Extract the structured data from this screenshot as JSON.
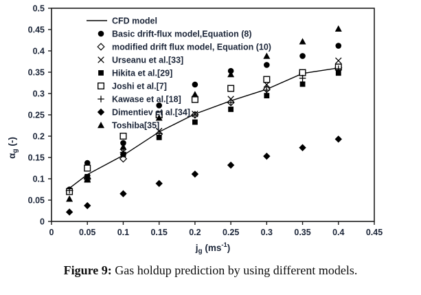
{
  "figure": {
    "caption_label": "Figure 9:",
    "caption_text": " Gas holdup prediction by using different models."
  },
  "chart_data": {
    "type": "line+scatter",
    "title": "",
    "xlabel": {
      "base": "j",
      "sub": "g",
      "mid": " (ms",
      "sup": "-1",
      "end": ")"
    },
    "ylabel": {
      "base": "α",
      "sub": "g",
      "end": " (-)"
    },
    "xlim": [
      0,
      0.45
    ],
    "ylim": [
      0,
      0.5
    ],
    "grid": false,
    "legend_position": "top-left-inside",
    "xticks": {
      "values": [
        0,
        0.05,
        0.1,
        0.15,
        0.2,
        0.25,
        0.3,
        0.35,
        0.4,
        0.45
      ],
      "labels": [
        "0",
        "0.05",
        "0.1",
        "0.15",
        "0.2",
        "0.25",
        "0.3",
        "0.35",
        "0.4",
        "0.45"
      ]
    },
    "yticks": {
      "values": [
        0,
        0.05,
        0.1,
        0.15,
        0.2,
        0.25,
        0.3,
        0.35,
        0.4,
        0.45,
        0.5
      ],
      "labels": [
        "0",
        "0.05",
        "0.1",
        "0.15",
        "0.2",
        "0.25",
        "0.3",
        "0.35",
        "0.4",
        "0.45",
        "0.5"
      ]
    },
    "x": [
      0.025,
      0.05,
      0.1,
      0.15,
      0.2,
      0.25,
      0.3,
      0.35,
      0.4
    ],
    "series": [
      {
        "name": "CFD model",
        "marker": "line",
        "values": [
          0.078,
          0.11,
          0.155,
          0.21,
          0.252,
          0.283,
          0.31,
          0.347,
          0.36
        ]
      },
      {
        "name": "Basic drift-flux model,Equation (8)",
        "marker": "circle-filled",
        "values": [
          0.075,
          0.137,
          0.184,
          0.272,
          0.321,
          0.353,
          0.367,
          0.388,
          0.412
        ]
      },
      {
        "name": "modified drift flux model, Equation (10)",
        "marker": "diamond-open",
        "values": [
          0.072,
          0.1,
          0.147,
          0.205,
          0.25,
          0.279,
          0.31,
          0.348,
          0.361
        ]
      },
      {
        "name": "Urseanu et al.[33]",
        "marker": "x",
        "values": [
          0.07,
          0.101,
          0.163,
          0.212,
          0.252,
          0.287,
          0.321,
          0.35,
          0.377
        ]
      },
      {
        "name": "Hikita et al.[29]",
        "marker": "square-filled",
        "values": [
          0.071,
          0.105,
          0.157,
          0.197,
          0.233,
          0.263,
          0.295,
          0.322,
          0.348
        ]
      },
      {
        "name": "Joshi et al.[7]",
        "marker": "square-open",
        "values": [
          0.07,
          0.125,
          0.2,
          0.25,
          0.286,
          0.312,
          0.333,
          0.349,
          0.362
        ]
      },
      {
        "name": "Kawase et al.[18]",
        "marker": "plus",
        "values": [
          0.073,
          0.102,
          0.161,
          0.206,
          0.25,
          0.279,
          0.308,
          0.336,
          0.358
        ]
      },
      {
        "name": "Dimentiev et al.[34]",
        "marker": "diamond-filled",
        "values": [
          0.022,
          0.037,
          0.065,
          0.089,
          0.111,
          0.132,
          0.153,
          0.173,
          0.193
        ]
      },
      {
        "name": "Toshiba[35]",
        "marker": "triangle-filled",
        "values": [
          0.053,
          0.098,
          0.175,
          0.243,
          0.298,
          0.345,
          0.388,
          0.422,
          0.452
        ]
      }
    ],
    "colors": {
      "marker": "#000000",
      "line": "#000000",
      "axis": "#1a1a1a",
      "tick_text": "#1b2538",
      "legend_text": "#1b2538"
    }
  }
}
